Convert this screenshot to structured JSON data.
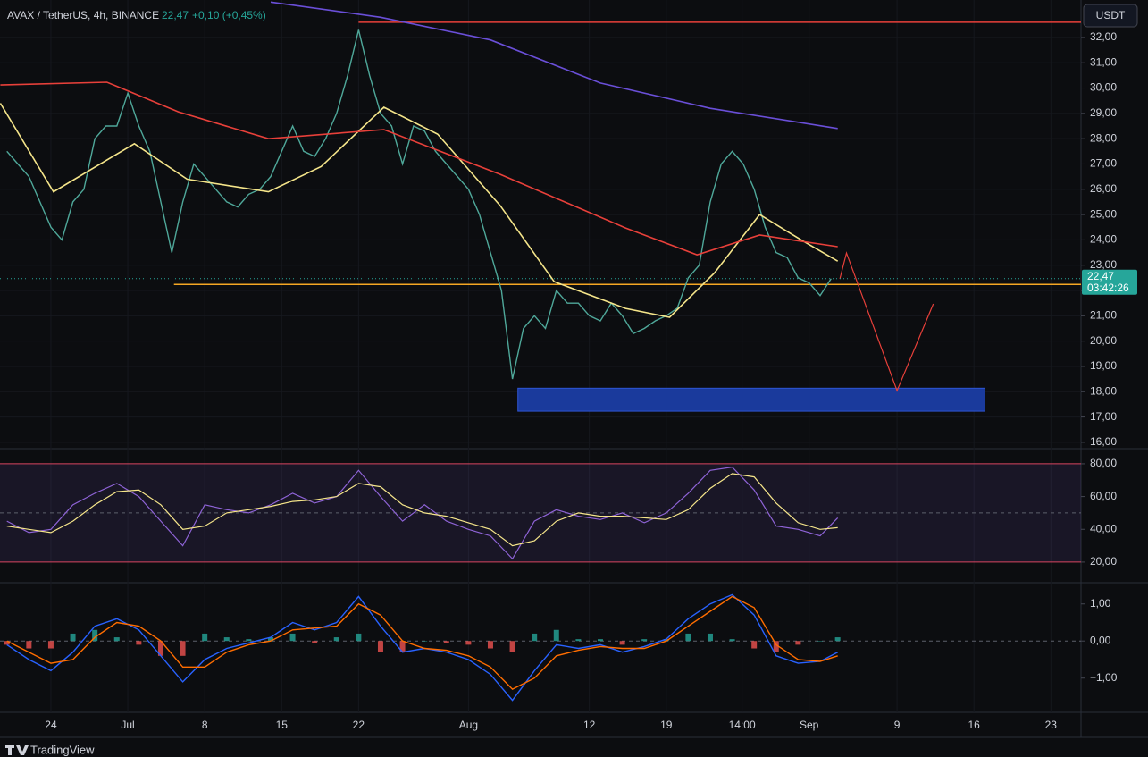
{
  "header": {
    "title": "AVAX / TetherUS, 4h, BINANCE",
    "change": "+0,10 (+0,45%)",
    "currency": "USDT"
  },
  "footer": {
    "brand": "TradingView"
  },
  "chart_data": [
    {
      "type": "line",
      "xlim": [
        -4.63,
        93.74
      ],
      "xticks": [
        {
          "value": 0,
          "label": "24"
        },
        {
          "value": 7,
          "label": "Jul"
        },
        {
          "value": 14,
          "label": "8"
        },
        {
          "value": 21,
          "label": "15"
        },
        {
          "value": 28,
          "label": "22"
        },
        {
          "value": 38,
          "label": "Aug"
        },
        {
          "value": 49,
          "label": "12"
        },
        {
          "value": 56,
          "label": "19"
        },
        {
          "value": 62.9,
          "label": "14:00"
        },
        {
          "value": 69,
          "label": "Sep"
        },
        {
          "value": 77,
          "label": "9"
        },
        {
          "value": 84,
          "label": "16"
        },
        {
          "value": 91,
          "label": "23"
        }
      ],
      "ylim": [
        15.82,
        33.48
      ],
      "yticks": [
        {
          "value": 16,
          "label": "16,00"
        },
        {
          "value": 17,
          "label": "17,00"
        },
        {
          "value": 18,
          "label": "18,00"
        },
        {
          "value": 19,
          "label": "19,00"
        },
        {
          "value": 20,
          "label": "20,00"
        },
        {
          "value": 21,
          "label": "21,00"
        },
        {
          "value": 22,
          "label": "22,00"
        },
        {
          "value": 23,
          "label": "23,00"
        },
        {
          "value": 24,
          "label": "24,00"
        },
        {
          "value": 25,
          "label": "25,00"
        },
        {
          "value": 26,
          "label": "26,00"
        },
        {
          "value": 27,
          "label": "27,00"
        },
        {
          "value": 28,
          "label": "28,00"
        },
        {
          "value": 29,
          "label": "29,00"
        },
        {
          "value": 30,
          "label": "30,00"
        },
        {
          "value": 31,
          "label": "31,00"
        },
        {
          "value": 32,
          "label": "32,00"
        }
      ],
      "grid": true,
      "series": [
        {
          "color": "#4fa89a",
          "x": [
            -4,
            -3,
            -2,
            -1,
            0,
            1,
            2,
            3,
            4,
            5,
            6,
            7,
            8,
            9,
            10,
            11,
            12,
            13,
            14,
            15,
            16,
            17,
            18,
            19,
            20,
            21,
            22,
            23,
            24,
            25,
            26,
            27,
            28,
            29,
            30,
            31,
            32,
            33,
            34,
            35,
            36,
            37,
            38,
            39,
            40,
            41,
            42,
            43,
            44,
            45,
            46,
            47,
            48,
            49,
            50,
            51,
            52,
            53,
            54,
            55,
            56,
            57,
            58,
            59,
            60,
            61,
            62,
            63,
            64,
            65,
            66,
            67,
            68,
            69,
            70,
            71
          ],
          "values": [
            27.5,
            27.0,
            26.5,
            25.5,
            24.5,
            24.0,
            25.5,
            26.0,
            28.0,
            28.5,
            28.5,
            29.8,
            28.5,
            27.5,
            25.5,
            23.5,
            25.5,
            27.0,
            26.5,
            26.0,
            25.5,
            25.3,
            25.8,
            26.0,
            26.5,
            27.5,
            28.5,
            27.5,
            27.3,
            28.0,
            29.0,
            30.5,
            32.3,
            30.5,
            29.0,
            28.5,
            27.0,
            28.5,
            28.3,
            27.5,
            27.0,
            26.5,
            26.0,
            25.0,
            23.5,
            22.0,
            18.5,
            20.5,
            21.0,
            20.5,
            22.0,
            21.5,
            21.5,
            21.0,
            20.8,
            21.5,
            21.0,
            20.3,
            20.5,
            20.8,
            21.0,
            21.3,
            22.5,
            23.0,
            25.5,
            27.0,
            27.5,
            27.0,
            26.0,
            24.5,
            23.5,
            23.3,
            22.5,
            22.3,
            21.8,
            22.47
          ]
        },
        {
          "color": "#f5e58a",
          "x": [
            -4.6,
            0.24,
            7.6,
            12.4,
            19.8,
            24.6,
            30.3,
            35.2,
            40.9,
            45.8,
            52.3,
            56.3,
            60.4,
            64.5,
            68.5,
            71.6
          ],
          "values": [
            29.4,
            25.9,
            27.8,
            26.4,
            25.9,
            26.9,
            29.24,
            28.18,
            25.35,
            22.35,
            21.29,
            20.94,
            22.7,
            25.0,
            23.94,
            23.16
          ]
        },
        {
          "color": "#e8403a",
          "x": [
            -4.6,
            5.1,
            11.6,
            19.8,
            30.3,
            40.9,
            52.3,
            58.8,
            64.5,
            71.6
          ],
          "values": [
            30.12,
            30.23,
            29.06,
            28.0,
            28.36,
            26.59,
            24.47,
            23.41,
            24.19,
            23.73
          ]
        },
        {
          "color": "#6a4fd8",
          "x": [
            20,
            30,
            40,
            50,
            60,
            71.6
          ],
          "values": [
            33.4,
            32.8,
            31.9,
            30.2,
            29.2,
            28.4
          ]
        }
      ],
      "levels": [
        {
          "value": 32.6,
          "start": 28,
          "color": "#e8403a"
        },
        {
          "value": 22.24,
          "start": 11.2,
          "color": "#f5a623"
        }
      ],
      "zone": {
        "x": [
          42.5,
          85
        ],
        "values": [
          17.23,
          18.14
        ],
        "color": "#1a3a9c"
      },
      "projection": {
        "x": [
          71.8,
          72.4,
          77,
          80.3
        ],
        "values": [
          22.46,
          23.48,
          18.04,
          21.47
        ],
        "color": "#e8403a"
      },
      "last_price": {
        "value": 22.47,
        "label": "22,47",
        "countdown": "03:42:26"
      }
    },
    {
      "type": "line",
      "xlim": [
        -4.63,
        93.74
      ],
      "ylim": [
        8.5,
        87.6
      ],
      "yticks": [
        {
          "value": 20,
          "label": "20,00"
        },
        {
          "value": 40,
          "label": "40,00"
        },
        {
          "value": 60,
          "label": "60,00"
        },
        {
          "value": 80,
          "label": "80,00"
        }
      ],
      "band": [
        20,
        80
      ],
      "midline": 50,
      "series": [
        {
          "color": "#8e63d6",
          "x": [
            -4,
            -2,
            0,
            2,
            4,
            6,
            8,
            10,
            12,
            14,
            16,
            18,
            20,
            22,
            24,
            26,
            28,
            30,
            32,
            34,
            36,
            38,
            40,
            42,
            44,
            46,
            48,
            50,
            52,
            54,
            56,
            58,
            60,
            62,
            64,
            66,
            68,
            70,
            71.6
          ],
          "values": [
            45,
            38,
            40,
            55,
            62,
            68,
            60,
            45,
            30,
            55,
            52,
            50,
            55,
            62,
            56,
            60,
            76,
            60,
            45,
            55,
            45,
            40,
            36,
            22,
            45,
            52,
            48,
            46,
            50,
            44,
            50,
            62,
            76,
            78,
            64,
            42,
            40,
            36,
            47
          ]
        },
        {
          "color": "#f5e58a",
          "x": [
            -4,
            -2,
            0,
            2,
            4,
            6,
            8,
            10,
            12,
            14,
            16,
            18,
            20,
            22,
            24,
            26,
            28,
            30,
            32,
            34,
            36,
            38,
            40,
            42,
            44,
            46,
            48,
            50,
            52,
            54,
            56,
            58,
            60,
            62,
            64,
            66,
            68,
            70,
            71.6
          ],
          "values": [
            42,
            40,
            38,
            45,
            55,
            63,
            64,
            55,
            40,
            42,
            50,
            52,
            54,
            57,
            58,
            60,
            68,
            66,
            55,
            50,
            48,
            44,
            40,
            30,
            33,
            45,
            50,
            48,
            48,
            47,
            46,
            52,
            65,
            74,
            72,
            56,
            44,
            40,
            41
          ]
        }
      ]
    },
    {
      "type": "line",
      "xlim": [
        -4.63,
        93.74
      ],
      "ylim": [
        -1.875,
        1.5
      ],
      "yticks": [
        {
          "value": -1,
          "label": "−1,00"
        },
        {
          "value": 0,
          "label": "0,00"
        },
        {
          "value": 1,
          "label": "1,00"
        }
      ],
      "zeroline": 0,
      "series": [
        {
          "color": "#2962ff",
          "x": [
            -4,
            -2,
            0,
            2,
            4,
            6,
            8,
            10,
            12,
            14,
            16,
            18,
            20,
            22,
            24,
            26,
            28,
            30,
            32,
            34,
            36,
            38,
            40,
            42,
            44,
            46,
            48,
            50,
            52,
            54,
            56,
            58,
            60,
            62,
            64,
            66,
            68,
            70,
            71.6
          ],
          "values": [
            -0.1,
            -0.5,
            -0.8,
            -0.3,
            0.4,
            0.6,
            0.3,
            -0.4,
            -1.1,
            -0.5,
            -0.2,
            -0.05,
            0.1,
            0.5,
            0.3,
            0.5,
            1.2,
            0.4,
            -0.3,
            -0.2,
            -0.3,
            -0.5,
            -0.9,
            -1.6,
            -0.8,
            -0.1,
            -0.2,
            -0.1,
            -0.3,
            -0.15,
            0.05,
            0.6,
            1.0,
            1.25,
            0.7,
            -0.4,
            -0.6,
            -0.55,
            -0.3
          ]
        },
        {
          "color": "#ff6d00",
          "x": [
            -4,
            -2,
            0,
            2,
            4,
            6,
            8,
            10,
            12,
            14,
            16,
            18,
            20,
            22,
            24,
            26,
            28,
            30,
            32,
            34,
            36,
            38,
            40,
            42,
            44,
            46,
            48,
            50,
            52,
            54,
            56,
            58,
            60,
            62,
            64,
            66,
            68,
            70,
            71.6
          ],
          "values": [
            0,
            -0.3,
            -0.6,
            -0.5,
            0.1,
            0.5,
            0.4,
            0,
            -0.7,
            -0.7,
            -0.3,
            -0.1,
            0,
            0.3,
            0.35,
            0.4,
            1.0,
            0.7,
            0,
            -0.2,
            -0.25,
            -0.4,
            -0.7,
            -1.3,
            -1.0,
            -0.4,
            -0.25,
            -0.15,
            -0.2,
            -0.2,
            0,
            0.4,
            0.8,
            1.2,
            0.9,
            -0.1,
            -0.5,
            -0.55,
            -0.4
          ]
        }
      ],
      "histogram": {
        "up_color": "#26a69a",
        "down_color": "#ef5350",
        "x": [
          -4,
          -2,
          0,
          2,
          4,
          6,
          8,
          10,
          12,
          14,
          16,
          18,
          20,
          22,
          24,
          26,
          28,
          30,
          32,
          34,
          36,
          38,
          40,
          42,
          44,
          46,
          48,
          50,
          52,
          54,
          56,
          58,
          60,
          62,
          64,
          66,
          68,
          70,
          71.6
        ],
        "values": [
          -0.1,
          -0.2,
          -0.2,
          0.2,
          0.3,
          0.1,
          -0.1,
          -0.4,
          -0.4,
          0.2,
          0.1,
          0.05,
          0.1,
          0.2,
          -0.05,
          0.1,
          0.2,
          -0.3,
          -0.3,
          0,
          -0.05,
          -0.1,
          -0.2,
          -0.3,
          0.2,
          0.3,
          0.05,
          0.05,
          -0.1,
          0.05,
          0.05,
          0.2,
          0.2,
          0.05,
          -0.2,
          -0.3,
          -0.1,
          0,
          0.1
        ]
      }
    }
  ]
}
